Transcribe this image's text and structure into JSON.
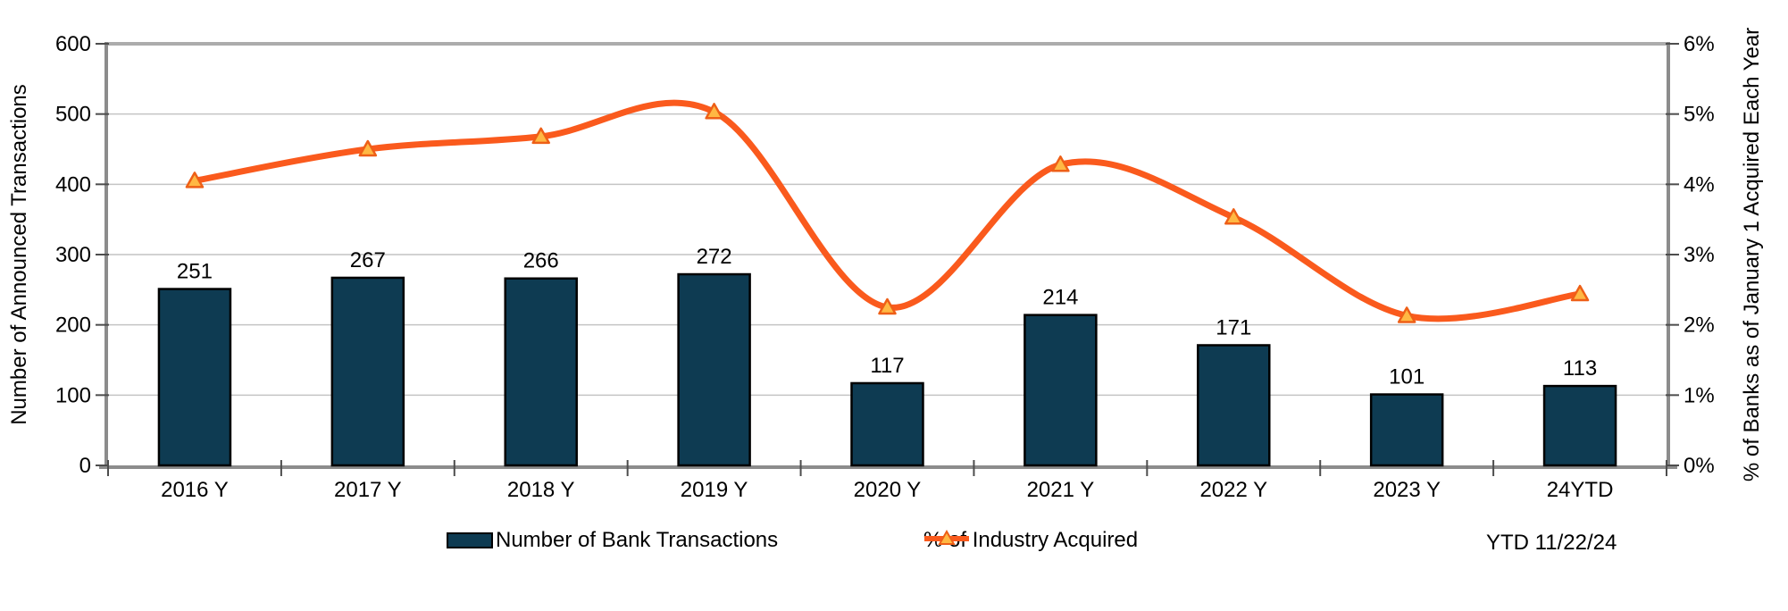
{
  "chart_data": {
    "type": "combo",
    "subtypes": [
      "bar",
      "line"
    ],
    "categories": [
      "2016 Y",
      "2017 Y",
      "2018 Y",
      "2019 Y",
      "2020 Y",
      "2021 Y",
      "2022 Y",
      "2023 Y",
      "24YTD"
    ],
    "series": [
      {
        "name": "Number of Bank Transactions",
        "type": "bar",
        "axis": "left",
        "values": [
          251,
          267,
          266,
          272,
          117,
          214,
          171,
          101,
          113
        ]
      },
      {
        "name": "% of Industry Acquired",
        "type": "line",
        "axis": "right",
        "values": [
          4.05,
          4.5,
          4.68,
          5.03,
          2.25,
          4.28,
          3.53,
          2.13,
          2.44
        ],
        "line_style": "smooth",
        "marker": "triangle"
      }
    ],
    "left_axis": {
      "title": "Number of Announced Transactions",
      "min": 0,
      "max": 600,
      "tick_step": 100,
      "tick_labels": [
        "0",
        "100",
        "200",
        "300",
        "400",
        "500",
        "600"
      ]
    },
    "right_axis": {
      "title": "% of Banks as of January 1 Acquired Each Year",
      "min": 0,
      "max": 6,
      "tick_step": 1,
      "tick_labels": [
        "0%",
        "1%",
        "2%",
        "3%",
        "4%",
        "5%",
        "6%"
      ]
    },
    "grid": "horizontal",
    "legend_position": "bottom",
    "data_labels": "above-bars"
  },
  "footnote": "YTD 11/22/24",
  "colors": {
    "background": "#FFFFFF",
    "bar_fill": "#0E3B52",
    "bar_border": "#000000",
    "line": "#FA5A1D",
    "marker_fill": "#FFB843",
    "marker_border": "#EE5F17",
    "grid": "#C4C4C4",
    "axis_line": "#8C8C8C",
    "top_border": "#ACACAC",
    "tick": "#4D4D4D",
    "text": "#000000"
  }
}
